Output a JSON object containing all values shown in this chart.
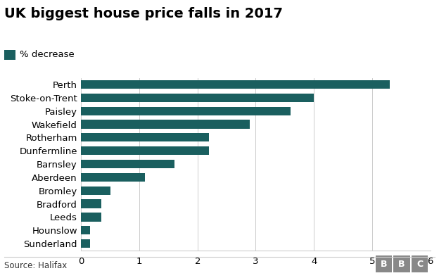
{
  "title": "UK biggest house price falls in 2017",
  "legend_label": "% decrease",
  "source": "Source: Halifax",
  "categories": [
    "Perth",
    "Stoke-on-Trent",
    "Paisley",
    "Wakefield",
    "Rotherham",
    "Dunfermline",
    "Barnsley",
    "Aberdeen",
    "Bromley",
    "Bradford",
    "Leeds",
    "Hounslow",
    "Sunderland"
  ],
  "values": [
    5.3,
    4.0,
    3.6,
    2.9,
    2.2,
    2.2,
    1.6,
    1.1,
    0.5,
    0.35,
    0.35,
    0.15,
    0.15
  ],
  "bar_color": "#1a5f5f",
  "background_color": "#ffffff",
  "xlim": [
    0,
    6
  ],
  "xticks": [
    0,
    1,
    2,
    3,
    4,
    5,
    6
  ],
  "title_fontsize": 14,
  "label_fontsize": 9.5,
  "tick_fontsize": 9.5,
  "source_fontsize": 8.5,
  "bbc_label": "BBC"
}
